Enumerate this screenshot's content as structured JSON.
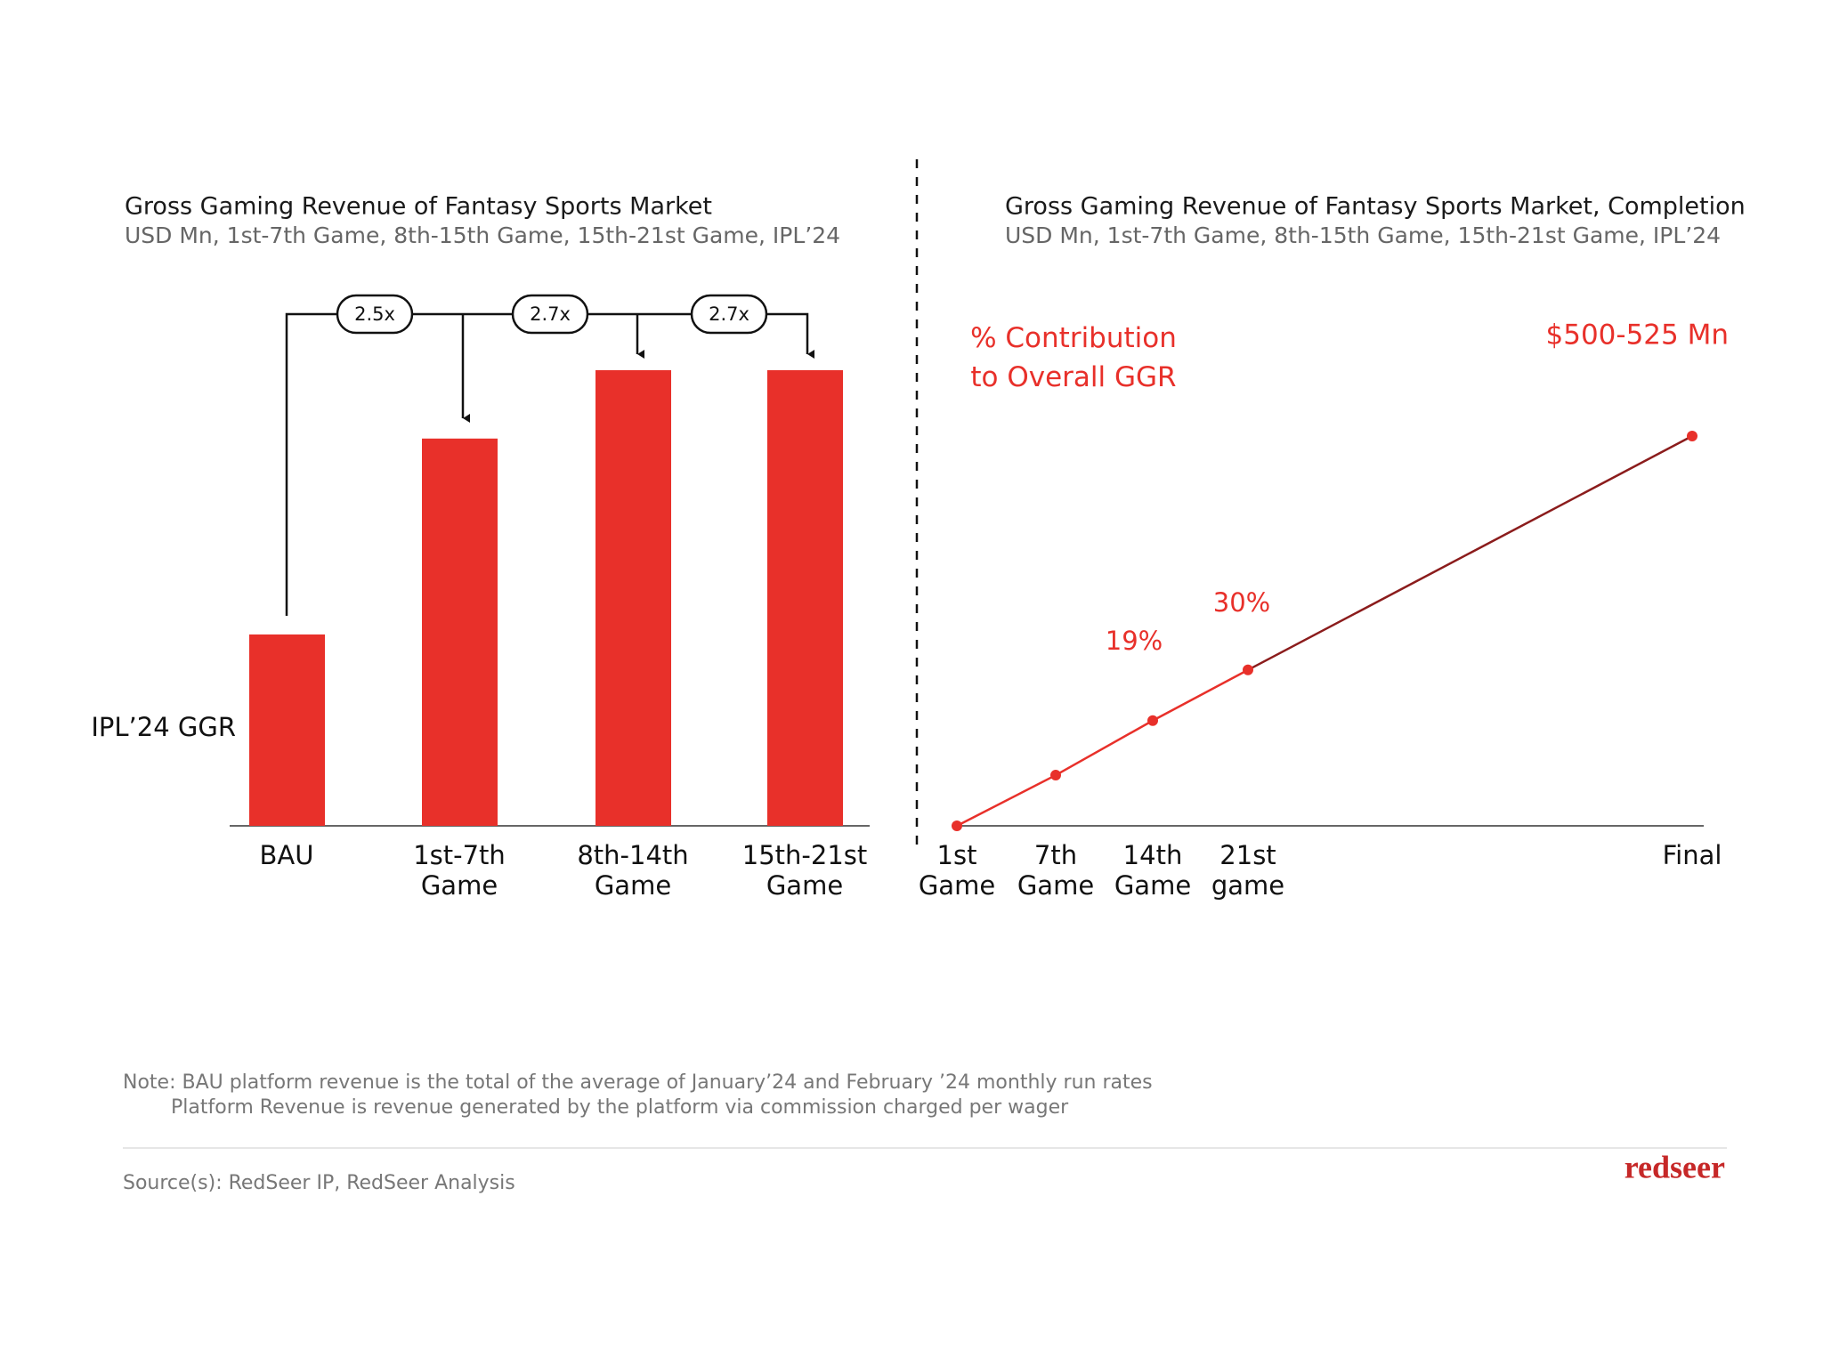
{
  "chart_data": [
    {
      "type": "bar",
      "title": "Gross Gaming Revenue of Fantasy Sports Market",
      "subtitle": "USD Mn, 1st-7th Game, 8th-15th Game, 15th-21st Game, IPL’24",
      "y_label": "IPL’24 GGR",
      "categories": [
        "BAU",
        "1st-7th Game",
        "8th-14th Game",
        "15th-21st Game"
      ],
      "values": [
        42,
        85,
        100,
        100
      ],
      "color": "#e8302a",
      "ylim": [
        0,
        100
      ],
      "annotations": [
        "2.5x",
        "2.7x",
        "2.7x"
      ]
    },
    {
      "type": "line",
      "title": "Gross Gaming Revenue of Fantasy Sports Market, Completion",
      "subtitle": "USD Mn, 1st-7th Game, 8th-15th Game, 15th-21st Game, IPL’24",
      "legend_label": "% Contribution to Overall GGR",
      "final_label": "$500-525 Mn",
      "categories": [
        "1st Game",
        "7th Game",
        "14th Game",
        "21st game",
        "Final"
      ],
      "values": [
        0,
        13,
        27,
        40,
        100
      ],
      "color": "#e8302a",
      "final_segment_color": "#8b1c1c",
      "ylim": [
        0,
        100
      ],
      "annotations": [
        "19%",
        "30%"
      ]
    }
  ],
  "footer": {
    "notes": [
      "Note: BAU platform revenue is the total of the average of January’24 and February ’24 monthly run rates",
      "Platform Revenue  is revenue generated by the platform via commission charged per wager"
    ],
    "source": "Source(s): RedSeer IP, RedSeer Analysis",
    "logo": "redseer"
  }
}
